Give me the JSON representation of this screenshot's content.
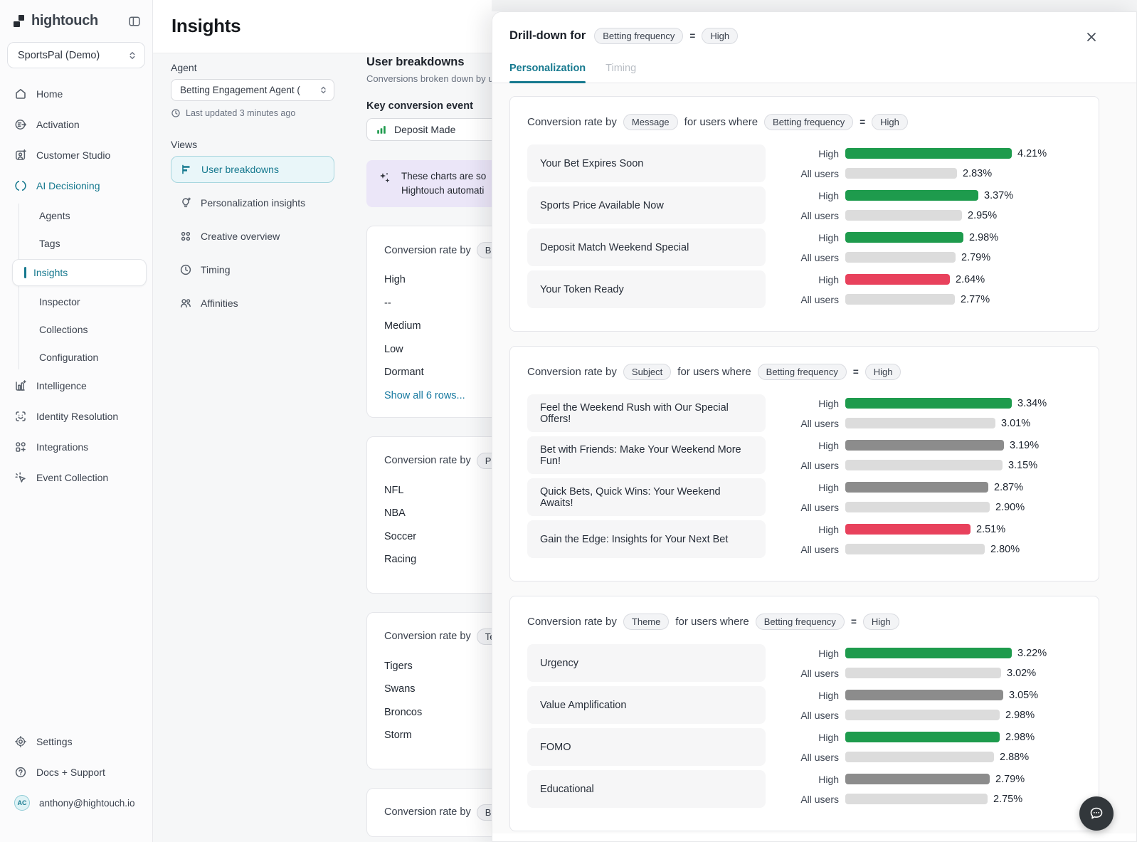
{
  "brand": {
    "logo_text": "hightouch",
    "workspace": "SportsPal (Demo)"
  },
  "sidebar": {
    "nav": [
      {
        "label": "Home"
      },
      {
        "label": "Activation"
      },
      {
        "label": "Customer Studio"
      },
      {
        "label": "AI Decisioning"
      },
      {
        "label": "Agents"
      },
      {
        "label": "Tags"
      },
      {
        "label": "Insights"
      },
      {
        "label": "Inspector"
      },
      {
        "label": "Collections"
      },
      {
        "label": "Configuration"
      },
      {
        "label": "Intelligence"
      },
      {
        "label": "Identity Resolution"
      },
      {
        "label": "Integrations"
      },
      {
        "label": "Event Collection"
      }
    ],
    "footer": {
      "settings": "Settings",
      "docs": "Docs + Support",
      "account_initials": "AC",
      "account_email": "anthony@hightouch.io"
    }
  },
  "header": {
    "title": "Insights"
  },
  "controls": {
    "agent_label": "Agent",
    "agent_value": "Betting Engagement Agent (...",
    "last_updated": "Last updated 3 minutes ago",
    "views_label": "Views",
    "views": [
      {
        "label": "User breakdowns"
      },
      {
        "label": "Personalization insights"
      },
      {
        "label": "Creative overview"
      },
      {
        "label": "Timing"
      },
      {
        "label": "Affinities"
      }
    ]
  },
  "breakdowns": {
    "title": "User breakdowns",
    "subtitle": "Conversions broken down by user",
    "key_event_label": "Key conversion event",
    "key_event_value": "Deposit Made",
    "banner_line1": "These charts are so",
    "banner_line2": "Hightouch automati",
    "cards": [
      {
        "prefix": "Conversion rate by",
        "pill": "Be",
        "rows": [
          "High",
          "--",
          "Medium",
          "Low",
          "Dormant"
        ],
        "link": "Show all 6 rows..."
      },
      {
        "prefix": "Conversion rate by",
        "pill": "Pre",
        "rows": [
          "NFL",
          "NBA",
          "Soccer",
          "Racing"
        ]
      },
      {
        "prefix": "Conversion rate by",
        "pill": "Tea",
        "rows": [
          "Tigers",
          "Swans",
          "Broncos",
          "Storm"
        ]
      },
      {
        "prefix": "Conversion rate by",
        "pill": "Bet",
        "rows": []
      }
    ]
  },
  "drilldown": {
    "title_prefix": "Drill-down for",
    "dimension": "Betting frequency",
    "equals": "=",
    "value": "High",
    "tabs": [
      {
        "label": "Personalization",
        "active": true
      },
      {
        "label": "Timing",
        "active": false
      }
    ],
    "series_labels": {
      "high": "High",
      "all": "All users"
    },
    "cards": [
      {
        "prefix": "Conversion rate by",
        "by": "Message",
        "mid": "for users where",
        "where": "Betting frequency",
        "equals": "=",
        "value": "High",
        "rows": [
          {
            "name": "Your Bet Expires Soon",
            "high": 4.21,
            "high_display": "4.21%",
            "high_color": "green",
            "all": 2.83,
            "all_display": "2.83%"
          },
          {
            "name": "Sports Price Available Now",
            "high": 3.37,
            "high_display": "3.37%",
            "high_color": "green",
            "all": 2.95,
            "all_display": "2.95%"
          },
          {
            "name": "Deposit Match Weekend Special",
            "high": 2.98,
            "high_display": "2.98%",
            "high_color": "green",
            "all": 2.79,
            "all_display": "2.79%"
          },
          {
            "name": "Your Token Ready",
            "high": 2.64,
            "high_display": "2.64%",
            "high_color": "red",
            "all": 2.77,
            "all_display": "2.77%"
          }
        ]
      },
      {
        "prefix": "Conversion rate by",
        "by": "Subject",
        "mid": "for users where",
        "where": "Betting frequency",
        "equals": "=",
        "value": "High",
        "rows": [
          {
            "name": "Feel the Weekend Rush with Our Special Offers!",
            "high": 3.34,
            "high_display": "3.34%",
            "high_color": "green",
            "all": 3.01,
            "all_display": "3.01%"
          },
          {
            "name": "Bet with Friends: Make Your Weekend More Fun!",
            "high": 3.19,
            "high_display": "3.19%",
            "high_color": "gray",
            "all": 3.15,
            "all_display": "3.15%"
          },
          {
            "name": "Quick Bets, Quick Wins: Your Weekend Awaits!",
            "high": 2.87,
            "high_display": "2.87%",
            "high_color": "gray",
            "all": 2.9,
            "all_display": "2.90%"
          },
          {
            "name": "Gain the Edge: Insights for Your Next Bet",
            "high": 2.51,
            "high_display": "2.51%",
            "high_color": "red",
            "all": 2.8,
            "all_display": "2.80%"
          }
        ]
      },
      {
        "prefix": "Conversion rate by",
        "by": "Theme",
        "mid": "for users where",
        "where": "Betting frequency",
        "equals": "=",
        "value": "High",
        "rows": [
          {
            "name": "Urgency",
            "high": 3.22,
            "high_display": "3.22%",
            "high_color": "green",
            "all": 3.02,
            "all_display": "3.02%"
          },
          {
            "name": "Value Amplification",
            "high": 3.05,
            "high_display": "3.05%",
            "high_color": "gray",
            "all": 2.98,
            "all_display": "2.98%"
          },
          {
            "name": "FOMO",
            "high": 2.98,
            "high_display": "2.98%",
            "high_color": "green",
            "all": 2.88,
            "all_display": "2.88%"
          },
          {
            "name": "Educational",
            "high": 2.79,
            "high_display": "2.79%",
            "high_color": "gray",
            "all": 2.75,
            "all_display": "2.75%"
          }
        ]
      }
    ]
  },
  "colors": {
    "green": "#1e9b4d",
    "red": "#e8415c",
    "gray": "#8c8c8c",
    "light_gray": "#dcdcdc",
    "accent": "#16798f"
  }
}
